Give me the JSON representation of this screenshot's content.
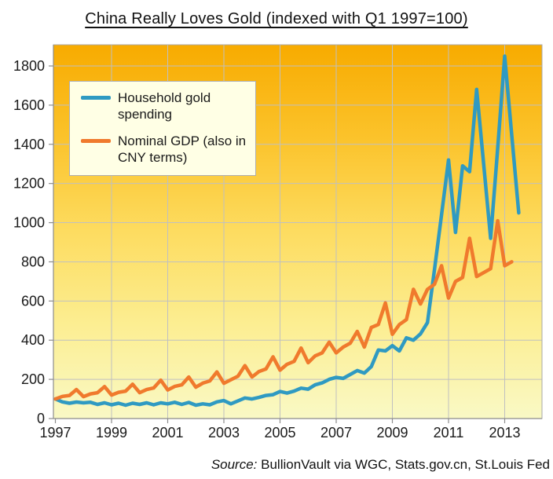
{
  "title": "China Really Loves Gold (indexed with Q1 1997=100)",
  "source_note": {
    "prefix": "Source:",
    "text": " BullionVault via WGC, Stats.gov.cn, St.Louis Fed"
  },
  "chart_data": {
    "type": "line",
    "title": "China Really Loves Gold (indexed with Q1 1997=100)",
    "x_unit": "quarterly, 1997 Q1 through 2013 Q3",
    "x_tick_labels": [
      "1997",
      "1999",
      "2001",
      "2003",
      "2005",
      "2007",
      "2009",
      "2011",
      "2013"
    ],
    "y_tick_values": [
      0,
      200,
      400,
      600,
      800,
      1000,
      1200,
      1400,
      1600,
      1800
    ],
    "ylim": [
      0,
      1908
    ],
    "grid": true,
    "legend_position": "top-left inside plot area",
    "plot_background_gradient": [
      "#f8ab00",
      "#fbc32b",
      "#fddc60",
      "#fcee92",
      "#f9f9c5"
    ],
    "grid_color": "#c0c0c0",
    "axis_color": "#8c8c8c",
    "text_color": "#1a1a1a",
    "series": [
      {
        "name": "Household gold spending",
        "color": "#2f9ac2",
        "values": [
          100,
          85,
          78,
          84,
          80,
          83,
          72,
          80,
          70,
          78,
          68,
          78,
          72,
          80,
          70,
          80,
          75,
          83,
          72,
          82,
          68,
          75,
          70,
          85,
          92,
          75,
          90,
          105,
          100,
          108,
          118,
          122,
          138,
          130,
          140,
          155,
          150,
          172,
          182,
          200,
          210,
          205,
          225,
          245,
          232,
          265,
          350,
          345,
          372,
          345,
          412,
          400,
          432,
          490,
          760,
          1040,
          1320,
          950,
          1290,
          1260,
          1680,
          1300,
          920,
          1380,
          1850,
          1450,
          1050
        ]
      },
      {
        "name": "Nominal GDP (also in CNY terms)",
        "color": "#f07a2d",
        "values": [
          100,
          113,
          118,
          148,
          112,
          126,
          132,
          163,
          120,
          134,
          140,
          175,
          132,
          148,
          156,
          196,
          146,
          164,
          172,
          212,
          160,
          181,
          192,
          238,
          180,
          198,
          216,
          270,
          212,
          240,
          253,
          315,
          247,
          277,
          292,
          360,
          285,
          320,
          335,
          390,
          335,
          365,
          385,
          445,
          365,
          465,
          480,
          590,
          430,
          480,
          505,
          660,
          585,
          660,
          685,
          780,
          615,
          700,
          720,
          920,
          725,
          745,
          765,
          1010,
          780,
          800,
          null
        ]
      }
    ]
  }
}
